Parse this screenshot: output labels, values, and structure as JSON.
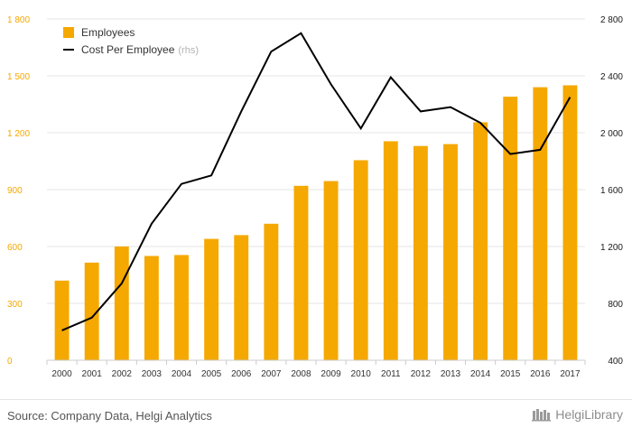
{
  "chart_data": {
    "type": "bar+line",
    "categories": [
      "2000",
      "2001",
      "2002",
      "2003",
      "2004",
      "2005",
      "2006",
      "2007",
      "2008",
      "2009",
      "2010",
      "2011",
      "2012",
      "2013",
      "2014",
      "2015",
      "2016",
      "2017"
    ],
    "series": [
      {
        "name": "Employees",
        "type": "bar",
        "axis": "left",
        "color": "#f5a800",
        "values": [
          420,
          515,
          600,
          550,
          555,
          640,
          660,
          720,
          920,
          945,
          1055,
          1155,
          1130,
          1140,
          1255,
          1390,
          1440,
          1450
        ]
      },
      {
        "name": "Cost Per Employee",
        "name_suffix": "(rhs)",
        "type": "line",
        "axis": "right",
        "color": "#000000",
        "values": [
          610,
          700,
          940,
          1360,
          1640,
          1700,
          2150,
          2570,
          2700,
          2340,
          2030,
          2390,
          2150,
          2180,
          2070,
          1850,
          1880,
          2250
        ]
      }
    ],
    "y_left": {
      "min": 0,
      "max": 1800,
      "ticks": [
        "0",
        "300",
        "600",
        "900",
        "1 200",
        "1 500",
        "1 800"
      ],
      "tick_values": [
        0,
        300,
        600,
        900,
        1200,
        1500,
        1800
      ],
      "color": "#f5a800"
    },
    "y_right": {
      "min": 400,
      "max": 2800,
      "ticks": [
        "400",
        "800",
        "1 200",
        "1 600",
        "2 000",
        "2 400",
        "2 800"
      ],
      "tick_values": [
        400,
        800,
        1200,
        1600,
        2000,
        2400,
        2800
      ]
    },
    "grid": true,
    "legend_position": "top-left"
  },
  "footer": {
    "source": "Source: Company Data, Helgi Analytics",
    "logo_text": "HelgiLibrary"
  }
}
